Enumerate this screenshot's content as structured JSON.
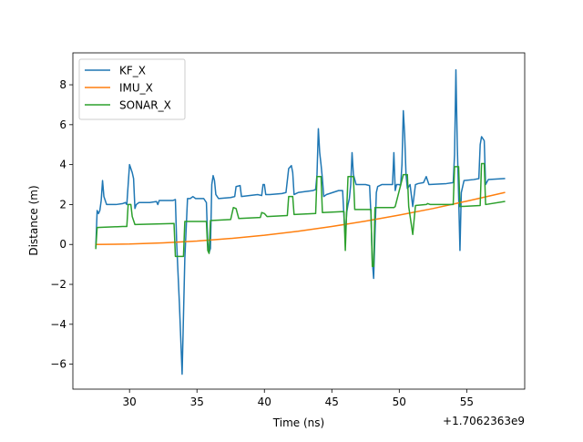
{
  "chart_data": {
    "type": "line",
    "title": "",
    "xlabel": "Time (ns)",
    "ylabel": "Distance (m)",
    "x_offset_label": "+1.7062363e9",
    "xlim": [
      25.8,
      59.3
    ],
    "ylim": [
      -7.25,
      9.6
    ],
    "x_ticks": [
      30,
      35,
      40,
      45,
      50,
      55
    ],
    "y_ticks": [
      -6,
      -4,
      -2,
      0,
      2,
      4,
      6,
      8
    ],
    "grid": false,
    "legend_position": "upper-left",
    "colors": {
      "KF_X": "#1f77b4",
      "IMU_X": "#ff7f0e",
      "SONAR_X": "#2ca02c"
    },
    "series": [
      {
        "name": "KF_X",
        "color": "#1f77b4",
        "points": [
          [
            27.5,
            -0.1
          ],
          [
            27.6,
            1.7
          ],
          [
            27.7,
            1.55
          ],
          [
            27.8,
            1.7
          ],
          [
            27.9,
            2.2
          ],
          [
            28.0,
            3.2
          ],
          [
            28.1,
            2.4
          ],
          [
            28.3,
            2.0
          ],
          [
            29.0,
            2.0
          ],
          [
            29.5,
            2.05
          ],
          [
            29.7,
            2.1
          ],
          [
            29.8,
            2.0
          ],
          [
            29.9,
            3.0
          ],
          [
            30.0,
            4.0
          ],
          [
            30.2,
            3.6
          ],
          [
            30.3,
            3.3
          ],
          [
            30.4,
            1.8
          ],
          [
            30.5,
            2.0
          ],
          [
            30.7,
            2.1
          ],
          [
            31.5,
            2.1
          ],
          [
            32.0,
            2.15
          ],
          [
            32.1,
            2.0
          ],
          [
            32.2,
            2.2
          ],
          [
            32.5,
            2.2
          ],
          [
            33.2,
            2.2
          ],
          [
            33.4,
            2.25
          ],
          [
            33.5,
            0.0
          ],
          [
            33.7,
            -3.0
          ],
          [
            33.9,
            -6.5
          ],
          [
            34.1,
            -0.7
          ],
          [
            34.3,
            2.3
          ],
          [
            34.5,
            2.3
          ],
          [
            34.7,
            2.4
          ],
          [
            34.9,
            2.3
          ],
          [
            35.5,
            2.3
          ],
          [
            35.7,
            2.1
          ],
          [
            35.8,
            0.1
          ],
          [
            35.9,
            -0.4
          ],
          [
            36.0,
            -0.2
          ],
          [
            36.1,
            3.0
          ],
          [
            36.2,
            3.45
          ],
          [
            36.3,
            3.2
          ],
          [
            36.4,
            2.5
          ],
          [
            36.6,
            2.3
          ],
          [
            37.5,
            2.35
          ],
          [
            37.8,
            2.4
          ],
          [
            37.9,
            2.9
          ],
          [
            38.2,
            2.95
          ],
          [
            38.3,
            2.4
          ],
          [
            39.5,
            2.5
          ],
          [
            39.8,
            2.45
          ],
          [
            39.9,
            3.0
          ],
          [
            40.0,
            3.0
          ],
          [
            40.1,
            2.5
          ],
          [
            40.4,
            2.5
          ],
          [
            41.3,
            2.55
          ],
          [
            41.6,
            2.6
          ],
          [
            41.8,
            3.8
          ],
          [
            42.0,
            3.95
          ],
          [
            42.1,
            3.6
          ],
          [
            42.2,
            2.5
          ],
          [
            42.5,
            2.6
          ],
          [
            43.0,
            2.65
          ],
          [
            43.6,
            2.7
          ],
          [
            43.8,
            2.75
          ],
          [
            43.9,
            3.5
          ],
          [
            44.0,
            5.8
          ],
          [
            44.1,
            4.6
          ],
          [
            44.2,
            4.0
          ],
          [
            44.3,
            3.3
          ],
          [
            44.4,
            2.4
          ],
          [
            44.6,
            2.5
          ],
          [
            45.5,
            2.7
          ],
          [
            45.8,
            2.7
          ],
          [
            45.9,
            1.4
          ],
          [
            46.0,
            0.3
          ],
          [
            46.1,
            1.6
          ],
          [
            46.2,
            2.0
          ],
          [
            46.3,
            2.3
          ],
          [
            46.4,
            3.0
          ],
          [
            46.5,
            4.6
          ],
          [
            46.6,
            3.5
          ],
          [
            46.8,
            3.0
          ],
          [
            47.5,
            3.0
          ],
          [
            47.8,
            2.95
          ],
          [
            47.9,
            1.5
          ],
          [
            48.0,
            -0.8
          ],
          [
            48.1,
            -1.7
          ],
          [
            48.2,
            0.5
          ],
          [
            48.3,
            2.6
          ],
          [
            48.4,
            2.9
          ],
          [
            48.7,
            3.0
          ],
          [
            49.5,
            3.0
          ],
          [
            49.6,
            4.6
          ],
          [
            49.7,
            2.7
          ],
          [
            49.8,
            3.0
          ],
          [
            50.0,
            3.0
          ],
          [
            50.1,
            2.95
          ],
          [
            50.2,
            4.0
          ],
          [
            50.3,
            6.7
          ],
          [
            50.4,
            5.5
          ],
          [
            50.5,
            3.5
          ],
          [
            50.6,
            2.8
          ],
          [
            50.8,
            3.0
          ],
          [
            51.0,
            1.9
          ],
          [
            51.2,
            3.0
          ],
          [
            51.4,
            3.05
          ],
          [
            51.8,
            3.1
          ],
          [
            52.0,
            3.4
          ],
          [
            52.2,
            3.0
          ],
          [
            53.5,
            3.05
          ],
          [
            54.0,
            3.1
          ],
          [
            54.1,
            4.5
          ],
          [
            54.2,
            8.75
          ],
          [
            54.3,
            5.0
          ],
          [
            54.4,
            2.5
          ],
          [
            54.5,
            -0.3
          ],
          [
            54.6,
            2.6
          ],
          [
            54.8,
            3.2
          ],
          [
            55.5,
            3.25
          ],
          [
            55.9,
            3.3
          ],
          [
            56.0,
            5.0
          ],
          [
            56.1,
            5.4
          ],
          [
            56.3,
            5.2
          ],
          [
            56.4,
            3.0
          ],
          [
            56.6,
            3.25
          ],
          [
            57.8,
            3.3
          ]
        ]
      },
      {
        "name": "IMU_X",
        "color": "#ff7f0e",
        "points": [
          [
            27.5,
            0.0
          ],
          [
            30.0,
            0.02
          ],
          [
            32.5,
            0.08
          ],
          [
            35.0,
            0.17
          ],
          [
            37.5,
            0.3
          ],
          [
            40.0,
            0.46
          ],
          [
            42.5,
            0.66
          ],
          [
            45.0,
            0.9
          ],
          [
            47.5,
            1.17
          ],
          [
            50.0,
            1.47
          ],
          [
            52.5,
            1.8
          ],
          [
            55.0,
            2.17
          ],
          [
            57.8,
            2.6
          ]
        ]
      },
      {
        "name": "SONAR_X",
        "color": "#2ca02c",
        "points": [
          [
            27.5,
            -0.2
          ],
          [
            27.6,
            0.85
          ],
          [
            29.5,
            0.9
          ],
          [
            29.8,
            0.9
          ],
          [
            29.9,
            2.0
          ],
          [
            30.1,
            2.0
          ],
          [
            30.2,
            1.4
          ],
          [
            30.4,
            1.0
          ],
          [
            33.3,
            1.05
          ],
          [
            33.4,
            -0.6
          ],
          [
            34.0,
            -0.6
          ],
          [
            34.1,
            1.15
          ],
          [
            35.7,
            1.15
          ],
          [
            35.8,
            -0.3
          ],
          [
            35.9,
            -0.45
          ],
          [
            36.0,
            1.2
          ],
          [
            37.5,
            1.25
          ],
          [
            37.7,
            1.85
          ],
          [
            37.9,
            1.8
          ],
          [
            38.1,
            1.3
          ],
          [
            39.7,
            1.35
          ],
          [
            39.8,
            1.6
          ],
          [
            40.0,
            1.55
          ],
          [
            40.2,
            1.4
          ],
          [
            41.7,
            1.45
          ],
          [
            41.8,
            2.4
          ],
          [
            42.1,
            2.4
          ],
          [
            42.2,
            1.5
          ],
          [
            43.8,
            1.55
          ],
          [
            43.9,
            3.4
          ],
          [
            44.2,
            3.4
          ],
          [
            44.3,
            1.6
          ],
          [
            45.9,
            1.65
          ],
          [
            46.0,
            -0.3
          ],
          [
            46.1,
            1.7
          ],
          [
            46.2,
            3.4
          ],
          [
            46.6,
            3.4
          ],
          [
            46.7,
            1.75
          ],
          [
            47.9,
            1.75
          ],
          [
            48.0,
            -1.1
          ],
          [
            48.1,
            -1.1
          ],
          [
            48.2,
            1.85
          ],
          [
            49.6,
            1.85
          ],
          [
            49.7,
            1.9
          ],
          [
            50.3,
            3.5
          ],
          [
            50.6,
            3.5
          ],
          [
            50.7,
            1.9
          ],
          [
            51.0,
            0.5
          ],
          [
            51.2,
            1.95
          ],
          [
            52.0,
            2.0
          ],
          [
            52.1,
            2.05
          ],
          [
            52.3,
            2.0
          ],
          [
            54.0,
            2.0
          ],
          [
            54.1,
            3.9
          ],
          [
            54.4,
            3.9
          ],
          [
            54.5,
            1.9
          ],
          [
            56.0,
            1.95
          ],
          [
            56.1,
            4.05
          ],
          [
            56.3,
            4.05
          ],
          [
            56.4,
            2.0
          ],
          [
            57.8,
            2.15
          ]
        ]
      }
    ]
  }
}
